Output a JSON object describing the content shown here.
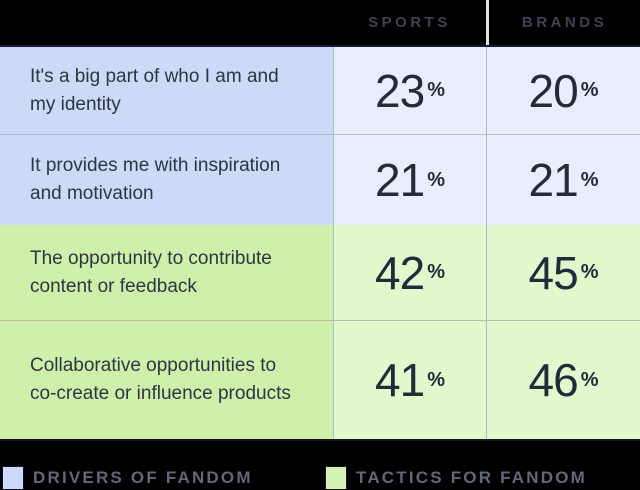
{
  "header": {
    "sports": "SPORTS",
    "brands": "BRANDS"
  },
  "ui": {
    "percent_sign": "%"
  },
  "rows": [
    {
      "label": "It's a big part of who I am and my identity",
      "sports": "23",
      "brands": "20",
      "group": "drivers"
    },
    {
      "label": "It provides me with inspiration and motivation",
      "sports": "21",
      "brands": "21",
      "group": "drivers"
    },
    {
      "label": "The opportunity to contribute content or feedback",
      "sports": "42",
      "brands": "45",
      "group": "tactics"
    },
    {
      "label": "Collaborative opportunities to co-create or influence products",
      "sports": "41",
      "brands": "46",
      "group": "tactics"
    }
  ],
  "legend": {
    "drivers": {
      "label": "DRIVERS OF FANDOM",
      "color": "#ccdaf8"
    },
    "tactics": {
      "label": "TACTICS FOR FANDOM",
      "color": "#d6f2b2"
    }
  },
  "colors": {
    "background": "#000000",
    "drivers_label_bg": "#ccdaf8",
    "drivers_value_bg": "#e9eefc",
    "tactics_label_bg": "#cff0ab",
    "tactics_value_bg": "#e3f8cc",
    "header_text": "#3c4352",
    "body_text": "#2e3542",
    "number_text": "#232a3a",
    "legend_text": "#61687a",
    "gridline": "#b3b9c0"
  },
  "chart_data": {
    "type": "table",
    "title": "",
    "columns": [
      "SPORTS",
      "BRANDS"
    ],
    "categories": [
      "It's a big part of who I am and my identity",
      "It provides me with inspiration and motivation",
      "The opportunity to contribute content or feedback",
      "Collaborative opportunities to co-create or influence products"
    ],
    "series": [
      {
        "name": "SPORTS",
        "values": [
          23,
          21,
          42,
          41
        ]
      },
      {
        "name": "BRANDS",
        "values": [
          20,
          21,
          45,
          46
        ]
      }
    ],
    "row_groups": [
      "Drivers of Fandom",
      "Drivers of Fandom",
      "Tactics for Fandom",
      "Tactics for Fandom"
    ],
    "legend_entries": [
      "DRIVERS OF FANDOM",
      "TACTICS FOR FANDOM"
    ],
    "legend_position": "bottom",
    "units": "%"
  }
}
